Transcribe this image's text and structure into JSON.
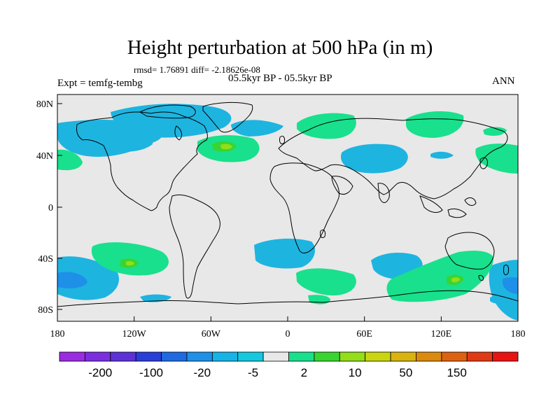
{
  "title": "Height perturbation at 500 hPa (in m)",
  "stats": "rmsd= 1.76891 diff= -2.18626e-08",
  "expt": "Expt = temfg-tembg",
  "period": "05.5kyr BP - 05.5kyr BP",
  "season": "ANN",
  "lat_ticks": [
    "80N",
    "40N",
    "0",
    "40S",
    "80S"
  ],
  "lon_ticks": [
    "180",
    "120W",
    "60W",
    "0",
    "60E",
    "120E",
    "180"
  ],
  "colorbar": {
    "colors": [
      "#9b2be0",
      "#7a2ee0",
      "#5c32d6",
      "#2a3dd8",
      "#1f6ae0",
      "#1e90e8",
      "#16b4e6",
      "#14c8e0",
      "#e8e8e8",
      "#19e08c",
      "#3ad431",
      "#93dd19",
      "#c9d60f",
      "#d9b30f",
      "#db8a0e",
      "#de6111",
      "#e03a14",
      "#e81414"
    ],
    "labels": [
      "-200",
      "-100",
      "-20",
      "-5",
      "2",
      "10",
      "50",
      "150"
    ]
  },
  "map": {
    "background": "#e8e8e8",
    "negative_color": "#1eb4e0",
    "negative_strong_color": "#1e90e8",
    "positive_color": "#19e08c",
    "positive_strong_color": "#3ad431",
    "positive_core_color": "#93dd19"
  }
}
